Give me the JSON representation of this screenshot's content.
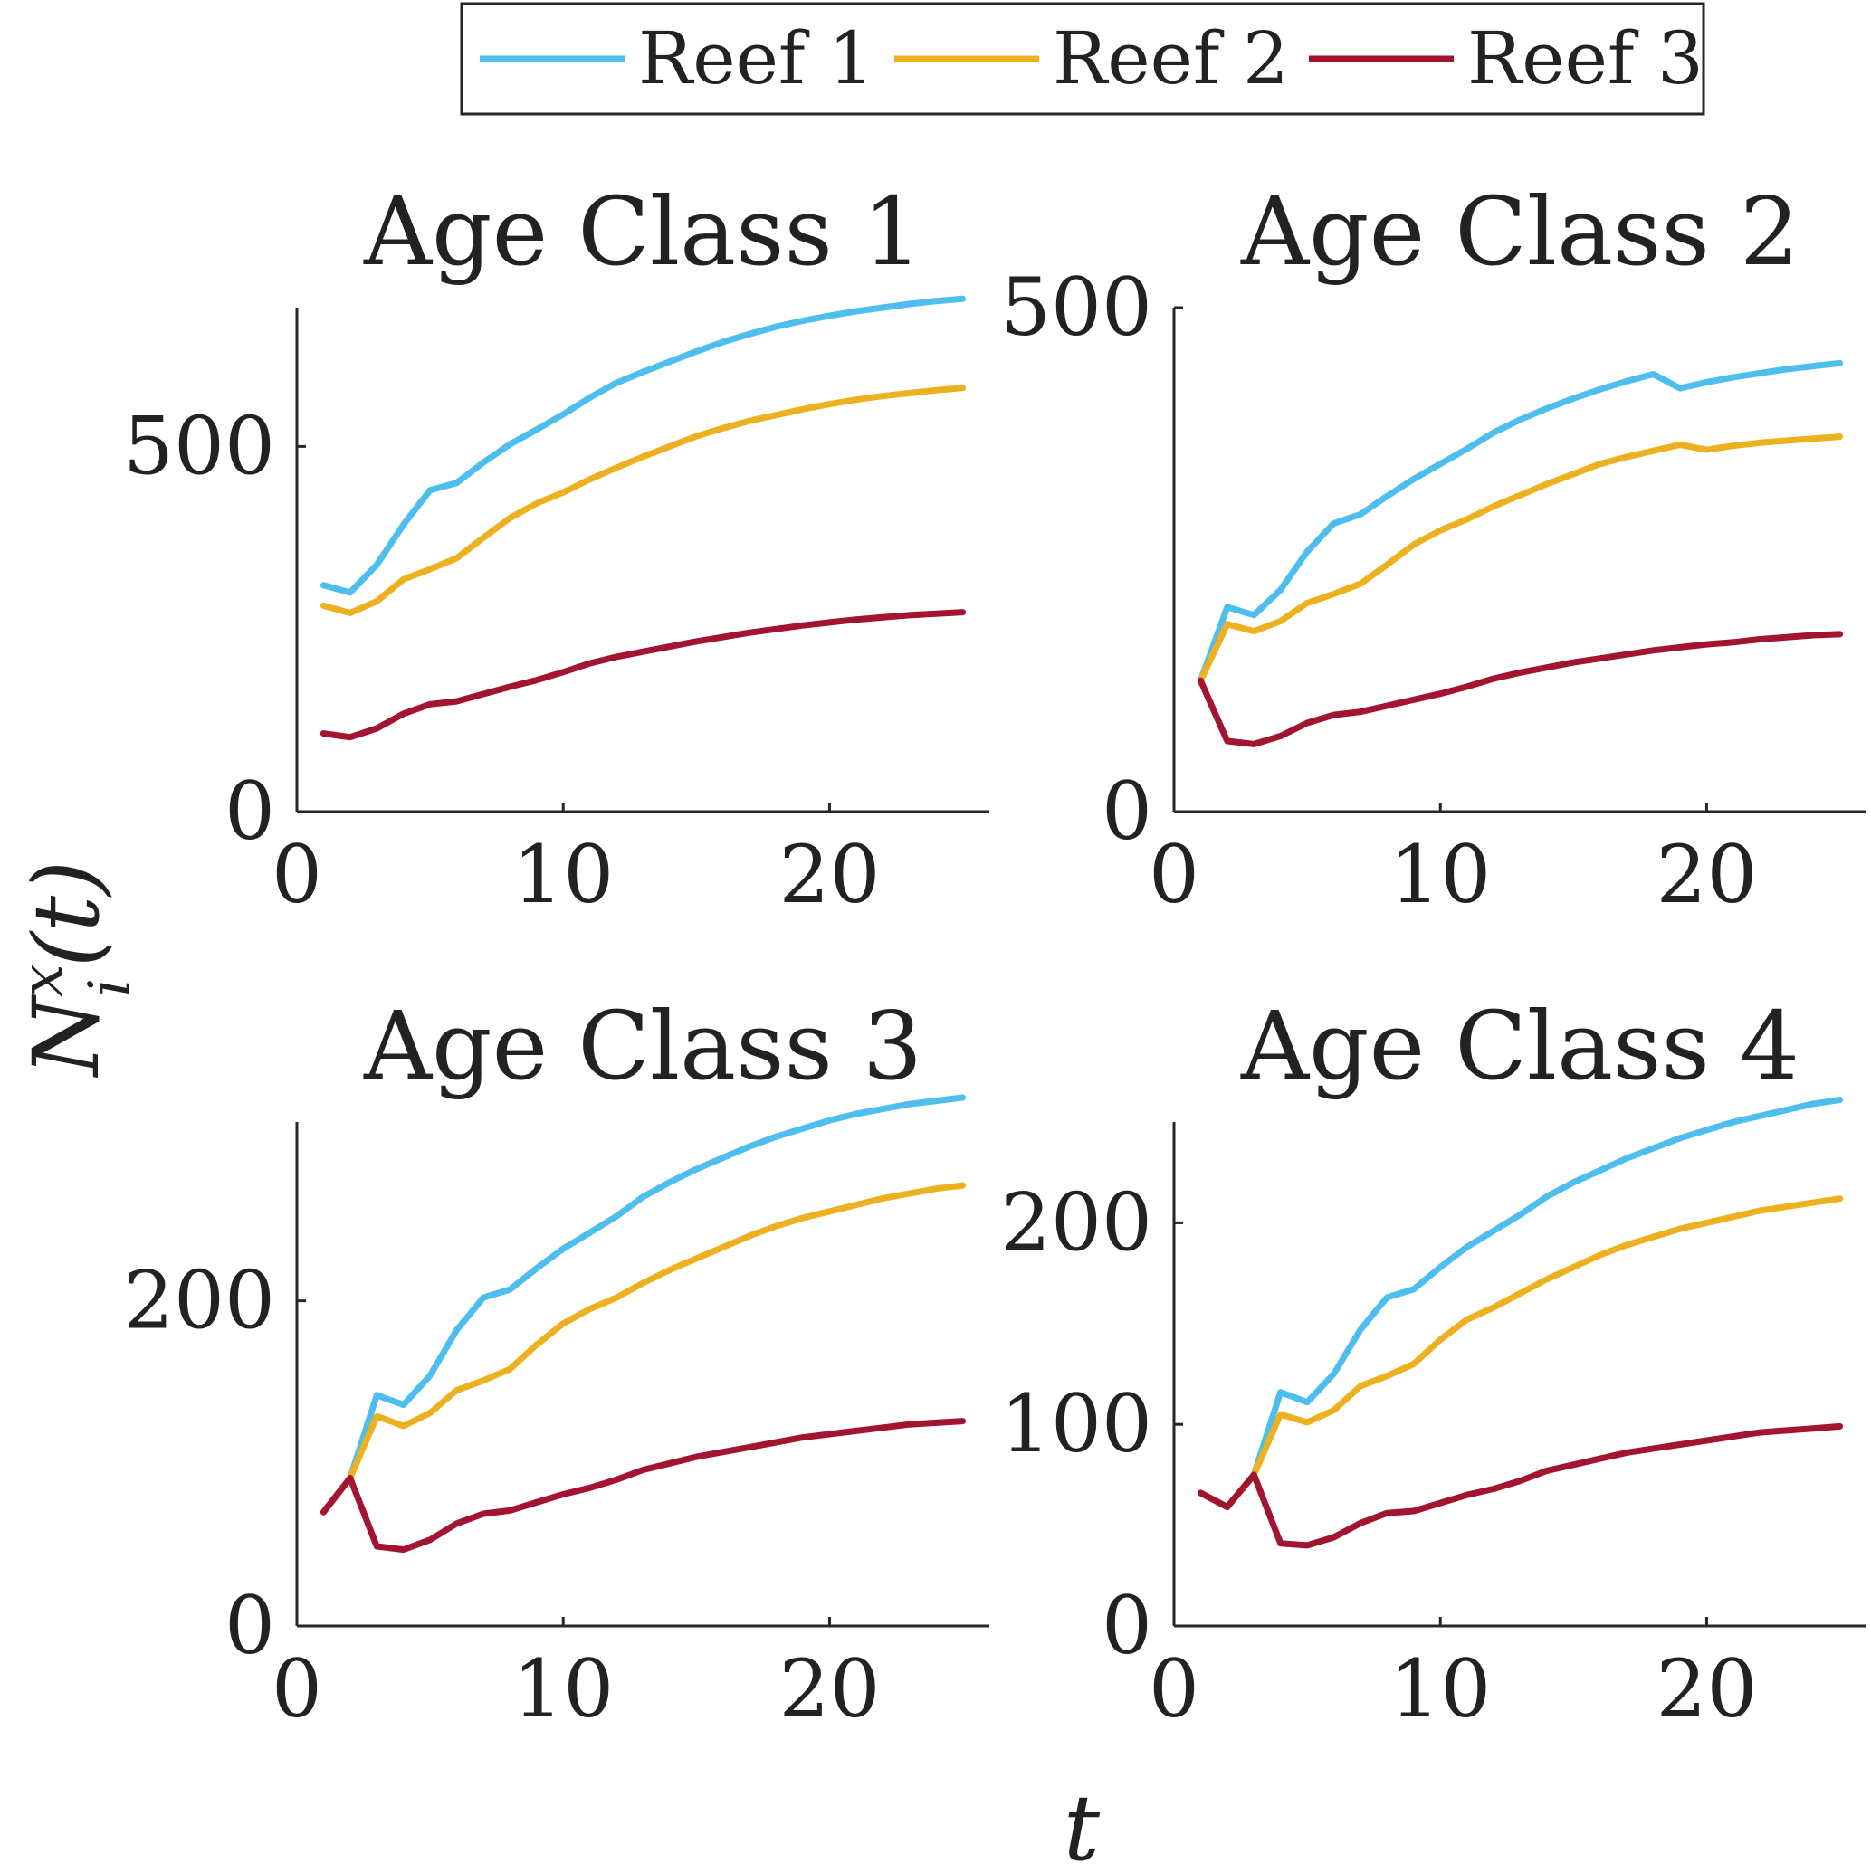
{
  "legend": {
    "placement": "top-center",
    "entries": [
      {
        "label": "Reef 1",
        "color": "#4dbeee"
      },
      {
        "label": "Reef 2",
        "color": "#edb120"
      },
      {
        "label": "Reef 3",
        "color": "#a2142f"
      }
    ]
  },
  "figure": {
    "xlabel": "t",
    "ylabel": "N",
    "ylabel_sup": "x",
    "ylabel_sub": "i",
    "ylabel_arg": "(t)"
  },
  "chart_data": [
    {
      "type": "line",
      "title": "Age Class 1",
      "xlim": [
        0,
        26
      ],
      "ylim": [
        0,
        690
      ],
      "xticks": [
        0,
        10,
        20
      ],
      "yticks": [
        0,
        500
      ],
      "grid": false,
      "x": [
        1,
        2,
        3,
        4,
        5,
        6,
        7,
        8,
        9,
        10,
        11,
        12,
        13,
        14,
        15,
        16,
        17,
        18,
        19,
        20,
        21,
        22,
        23,
        24,
        25
      ],
      "series": [
        {
          "name": "Reef 1",
          "values": [
            310,
            300,
            338,
            393,
            440,
            450,
            478,
            503,
            523,
            544,
            567,
            587,
            602,
            616,
            630,
            643,
            654,
            664,
            672,
            679,
            685,
            690,
            695,
            699,
            702
          ]
        },
        {
          "name": "Reef 2",
          "values": [
            282,
            272,
            288,
            318,
            332,
            347,
            375,
            402,
            422,
            437,
            455,
            471,
            486,
            500,
            514,
            525,
            535,
            543,
            551,
            558,
            564,
            569,
            573,
            577,
            580
          ]
        },
        {
          "name": "Reef 3",
          "values": [
            107,
            102,
            114,
            134,
            147,
            151,
            161,
            171,
            180,
            191,
            203,
            212,
            219,
            226,
            233,
            239,
            245,
            250,
            255,
            259,
            263,
            266,
            269,
            271,
            273
          ]
        }
      ]
    },
    {
      "type": "line",
      "title": "Age Class 2",
      "xlim": [
        0,
        26
      ],
      "ylim": [
        0,
        500
      ],
      "xticks": [
        0,
        10,
        20
      ],
      "yticks": [
        0,
        500
      ],
      "grid": false,
      "x": [
        1,
        2,
        3,
        4,
        5,
        6,
        7,
        8,
        9,
        10,
        11,
        12,
        13,
        14,
        15,
        16,
        17,
        18,
        19,
        20,
        21,
        22,
        23,
        24,
        25
      ],
      "series": [
        {
          "name": "Reef 1",
          "values": [
            130,
            203,
            195,
            220,
            258,
            286,
            295,
            313,
            330,
            345,
            360,
            376,
            389,
            400,
            410,
            419,
            427,
            434,
            420,
            426,
            431,
            435,
            439,
            442,
            445
          ]
        },
        {
          "name": "Reef 2",
          "values": [
            130,
            186,
            179,
            189,
            207,
            216,
            226,
            245,
            265,
            279,
            290,
            303,
            314,
            325,
            335,
            345,
            352,
            358,
            364,
            359,
            363,
            366,
            368,
            370,
            372
          ]
        },
        {
          "name": "Reef 3",
          "values": [
            130,
            70,
            67,
            75,
            88,
            96,
            99,
            105,
            111,
            117,
            124,
            132,
            138,
            143,
            148,
            152,
            156,
            160,
            163,
            166,
            168,
            171,
            173,
            175,
            176
          ]
        }
      ]
    },
    {
      "type": "line",
      "title": "Age Class 3",
      "xlim": [
        0,
        26
      ],
      "ylim": [
        0,
        310
      ],
      "xticks": [
        0,
        10,
        20
      ],
      "yticks": [
        0,
        200
      ],
      "grid": false,
      "x": [
        1,
        2,
        3,
        4,
        5,
        6,
        7,
        8,
        9,
        10,
        11,
        12,
        13,
        14,
        15,
        16,
        17,
        18,
        19,
        20,
        21,
        22,
        23,
        24,
        25
      ],
      "series": [
        {
          "name": "Reef 1",
          "values": [
            70,
            91,
            142,
            136,
            154,
            182,
            202,
            207,
            220,
            232,
            242,
            252,
            264,
            273,
            281,
            288,
            295,
            301,
            306,
            311,
            315,
            318,
            321,
            323,
            325
          ]
        },
        {
          "name": "Reef 2",
          "values": [
            70,
            91,
            129,
            123,
            131,
            145,
            151,
            158,
            173,
            186,
            195,
            202,
            211,
            219,
            226,
            233,
            240,
            246,
            251,
            255,
            259,
            263,
            266,
            269,
            271
          ]
        },
        {
          "name": "Reef 3",
          "values": [
            70,
            91,
            49,
            47,
            53,
            63,
            69,
            71,
            76,
            81,
            85,
            90,
            96,
            100,
            104,
            107,
            110,
            113,
            116,
            118,
            120,
            122,
            124,
            125,
            126
          ]
        }
      ]
    },
    {
      "type": "line",
      "title": "Age Class 4",
      "xlim": [
        0,
        26
      ],
      "ylim": [
        0,
        250
      ],
      "xticks": [
        0,
        10,
        20
      ],
      "yticks": [
        0,
        100,
        200
      ],
      "grid": false,
      "x": [
        1,
        2,
        3,
        4,
        5,
        6,
        7,
        8,
        9,
        10,
        11,
        12,
        13,
        14,
        15,
        16,
        17,
        18,
        19,
        20,
        21,
        22,
        23,
        24,
        25
      ],
      "series": [
        {
          "name": "Reef 1",
          "values": [
            66,
            59,
            75,
            116,
            111,
            125,
            147,
            163,
            167,
            178,
            188,
            196,
            204,
            213,
            220,
            226,
            232,
            237,
            242,
            246,
            250,
            253,
            256,
            259,
            261
          ]
        },
        {
          "name": "Reef 2",
          "values": [
            66,
            59,
            75,
            105,
            101,
            107,
            119,
            124,
            130,
            142,
            152,
            158,
            165,
            172,
            178,
            184,
            189,
            193,
            197,
            200,
            203,
            206,
            208,
            210,
            212
          ]
        },
        {
          "name": "Reef 3",
          "values": [
            66,
            59,
            75,
            41,
            40,
            44,
            51,
            56,
            57,
            61,
            65,
            68,
            72,
            77,
            80,
            83,
            86,
            88,
            90,
            92,
            94,
            96,
            97,
            98,
            99
          ]
        }
      ]
    }
  ]
}
